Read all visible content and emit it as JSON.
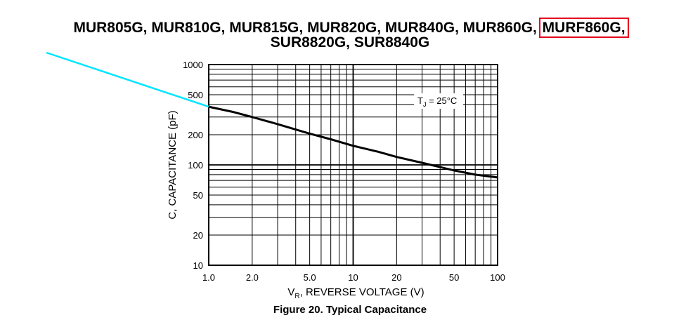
{
  "header": {
    "title_line1_prefix": "MUR805G, MUR810G, MUR815G, MUR820G, MUR840G, MUR860G,",
    "title_line1_highlight": "MURF860G,",
    "title_line2": "SUR8820G, SUR8840G"
  },
  "figure": {
    "caption": "Figure 20. Typical Capacitance"
  },
  "colors": {
    "highlight_box": "#e3001b",
    "annotation_line": "#00e5ff",
    "curve": "#000000",
    "grid": "#000000"
  },
  "chart_data": {
    "type": "line",
    "xscale": "log",
    "yscale": "log",
    "xlim": [
      1,
      100
    ],
    "ylim": [
      10,
      1000
    ],
    "x_ticks": [
      1,
      2,
      5,
      10,
      20,
      50,
      100
    ],
    "x_tick_labels": [
      "1.0",
      "2.0",
      "5.0",
      "10",
      "20",
      "50",
      "100"
    ],
    "y_ticks": [
      10,
      20,
      50,
      100,
      200,
      500,
      1000
    ],
    "y_tick_labels": [
      "10",
      "20",
      "50",
      "100",
      "200",
      "500",
      "1000"
    ],
    "xlabel_main": "V",
    "xlabel_sub": "R",
    "xlabel_rest": ", REVERSE VOLTAGE (V)",
    "ylabel": "C, CAPACITANCE (pF)",
    "annotation_main": "T",
    "annotation_sub": "J",
    "annotation_rest": " = 25°C",
    "grid": true,
    "series": [
      {
        "x": [
          1,
          1.5,
          2,
          3,
          5,
          7,
          10,
          15,
          20,
          30,
          50,
          70,
          100
        ],
        "values": [
          380,
          335,
          300,
          255,
          205,
          180,
          155,
          135,
          120,
          105,
          88,
          80,
          75
        ]
      }
    ]
  }
}
